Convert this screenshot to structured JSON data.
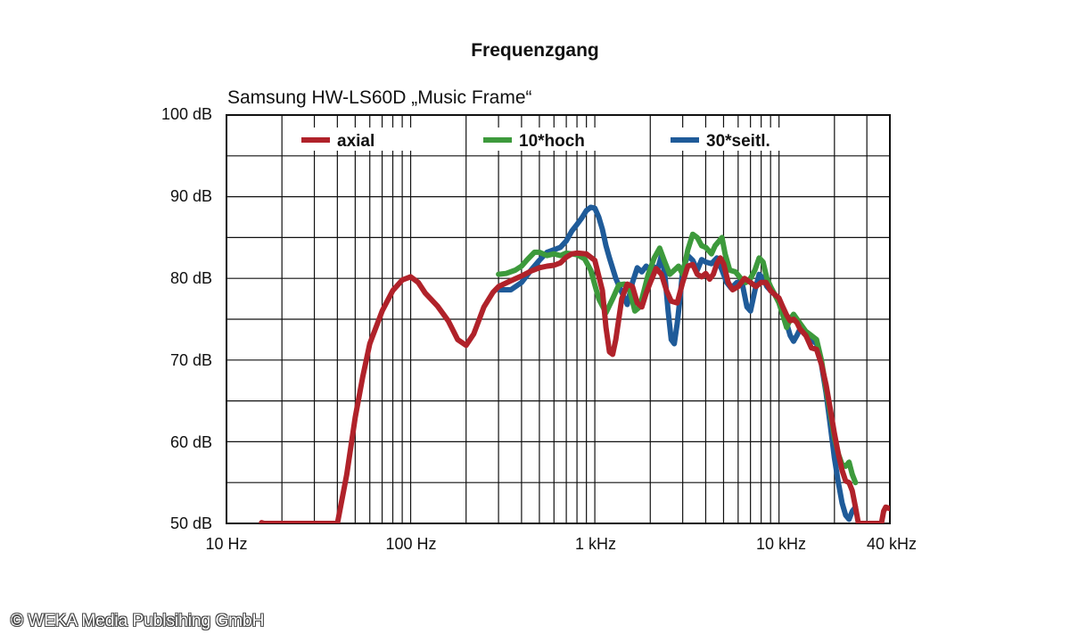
{
  "chart_data": {
    "type": "line",
    "title": "Frequenzgang",
    "subtitle": "Samsung HW-LS60D „Music Frame“",
    "x_scale": "log",
    "xlim": [
      10,
      40000
    ],
    "ylim": [
      50,
      100
    ],
    "y_ticks": [
      {
        "value": 100,
        "label": "100 dB"
      },
      {
        "value": 90,
        "label": "90 dB"
      },
      {
        "value": 80,
        "label": "80 dB"
      },
      {
        "value": 70,
        "label": "70 dB"
      },
      {
        "value": 60,
        "label": "60 dB"
      },
      {
        "value": 50,
        "label": "50 dB"
      }
    ],
    "x_ticks": [
      {
        "value": 10,
        "label": "10 Hz"
      },
      {
        "value": 100,
        "label": "100 Hz"
      },
      {
        "value": 1000,
        "label": "1 kHz"
      },
      {
        "value": 10000,
        "label": "10 kHz"
      },
      {
        "value": 40000,
        "label": "40 kHz"
      }
    ],
    "grid": true,
    "legend": "top",
    "series": [
      {
        "name": "axial",
        "color": "#b0222a",
        "points": [
          [
            15.5,
            50.1
          ],
          [
            16,
            50.0
          ],
          [
            40,
            50.0
          ],
          [
            45,
            56
          ],
          [
            50,
            63
          ],
          [
            55,
            68
          ],
          [
            60,
            72
          ],
          [
            70,
            76
          ],
          [
            80,
            78.5
          ],
          [
            90,
            79.8
          ],
          [
            100,
            80.2
          ],
          [
            110,
            79.5
          ],
          [
            120,
            78.2
          ],
          [
            140,
            76.6
          ],
          [
            160,
            74.8
          ],
          [
            180,
            72.5
          ],
          [
            200,
            71.8
          ],
          [
            220,
            73.2
          ],
          [
            250,
            76.5
          ],
          [
            280,
            78.3
          ],
          [
            300,
            79.0
          ],
          [
            350,
            79.7
          ],
          [
            400,
            80.3
          ],
          [
            450,
            80.9
          ],
          [
            500,
            81.3
          ],
          [
            550,
            81.5
          ],
          [
            600,
            81.6
          ],
          [
            650,
            81.9
          ],
          [
            700,
            82.6
          ],
          [
            750,
            83.0
          ],
          [
            800,
            83.1
          ],
          [
            900,
            83.0
          ],
          [
            1000,
            82.2
          ],
          [
            1100,
            78.5
          ],
          [
            1150,
            74
          ],
          [
            1200,
            71.0
          ],
          [
            1250,
            70.7
          ],
          [
            1300,
            72.5
          ],
          [
            1400,
            77.5
          ],
          [
            1500,
            79.3
          ],
          [
            1600,
            79.0
          ],
          [
            1700,
            77.0
          ],
          [
            1800,
            76.5
          ],
          [
            1900,
            78.2
          ],
          [
            2000,
            79.5
          ],
          [
            2150,
            81.2
          ],
          [
            2300,
            80.5
          ],
          [
            2450,
            78.5
          ],
          [
            2600,
            77.2
          ],
          [
            2800,
            77.0
          ],
          [
            3000,
            79.5
          ],
          [
            3200,
            81.5
          ],
          [
            3400,
            81.7
          ],
          [
            3600,
            80.5
          ],
          [
            3800,
            80.2
          ],
          [
            4000,
            80.6
          ],
          [
            4200,
            79.9
          ],
          [
            4400,
            80.5
          ],
          [
            4600,
            81.8
          ],
          [
            4800,
            82.5
          ],
          [
            5000,
            81.8
          ],
          [
            5300,
            79.5
          ],
          [
            5600,
            78.6
          ],
          [
            6000,
            79.0
          ],
          [
            6500,
            80.0
          ],
          [
            7000,
            79.5
          ],
          [
            7500,
            79.0
          ],
          [
            8000,
            79.5
          ],
          [
            8500,
            79.5
          ],
          [
            9000,
            78.5
          ],
          [
            9500,
            78.0
          ],
          [
            10000,
            77.6
          ],
          [
            10500,
            76.5
          ],
          [
            11000,
            75.5
          ],
          [
            11500,
            74.8
          ],
          [
            12000,
            75.0
          ],
          [
            12500,
            74.6
          ],
          [
            13000,
            73.8
          ],
          [
            14000,
            73.0
          ],
          [
            15000,
            71.5
          ],
          [
            16000,
            71.3
          ],
          [
            17000,
            69.5
          ],
          [
            18000,
            67
          ],
          [
            19000,
            64
          ],
          [
            20000,
            61
          ],
          [
            21000,
            58.5
          ],
          [
            22000,
            56.5
          ],
          [
            23000,
            55.2
          ],
          [
            24000,
            55.0
          ],
          [
            25000,
            54.0
          ],
          [
            26000,
            52.0
          ],
          [
            27000,
            50.0
          ],
          [
            36000,
            50.0
          ],
          [
            37000,
            51.5
          ],
          [
            38000,
            52.0
          ],
          [
            40000,
            51.8
          ]
        ]
      },
      {
        "name": "10*hoch",
        "color": "#3d9a3c",
        "points": [
          [
            300,
            80.5
          ],
          [
            330,
            80.6
          ],
          [
            370,
            81.0
          ],
          [
            400,
            81.5
          ],
          [
            430,
            82.3
          ],
          [
            470,
            83.2
          ],
          [
            500,
            83.2
          ],
          [
            550,
            82.8
          ],
          [
            600,
            83.0
          ],
          [
            650,
            82.8
          ],
          [
            700,
            83.1
          ],
          [
            750,
            83.0
          ],
          [
            800,
            82.9
          ],
          [
            880,
            82.4
          ],
          [
            950,
            81.0
          ],
          [
            1050,
            77.5
          ],
          [
            1150,
            75.8
          ],
          [
            1250,
            77.5
          ],
          [
            1350,
            79.2
          ],
          [
            1450,
            79.3
          ],
          [
            1550,
            78.5
          ],
          [
            1650,
            76.0
          ],
          [
            1750,
            76.5
          ],
          [
            1850,
            78.5
          ],
          [
            1950,
            80.5
          ],
          [
            2100,
            82.5
          ],
          [
            2250,
            83.7
          ],
          [
            2400,
            82.0
          ],
          [
            2550,
            80.5
          ],
          [
            2700,
            81.0
          ],
          [
            2850,
            81.5
          ],
          [
            3000,
            80.5
          ],
          [
            3200,
            83.5
          ],
          [
            3400,
            85.4
          ],
          [
            3600,
            85.0
          ],
          [
            3800,
            84.0
          ],
          [
            4000,
            83.8
          ],
          [
            4300,
            83.0
          ],
          [
            4500,
            84.0
          ],
          [
            4700,
            84.5
          ],
          [
            4900,
            85.0
          ],
          [
            5100,
            83.0
          ],
          [
            5400,
            81.0
          ],
          [
            5800,
            80.8
          ],
          [
            6200,
            80.0
          ],
          [
            6600,
            79.5
          ],
          [
            7000,
            80.0
          ],
          [
            7400,
            81.0
          ],
          [
            7800,
            82.5
          ],
          [
            8200,
            82.0
          ],
          [
            8600,
            80.0
          ],
          [
            9000,
            79.0
          ],
          [
            9500,
            78.0
          ],
          [
            10000,
            77.0
          ],
          [
            10500,
            75.5
          ],
          [
            11000,
            74.0
          ],
          [
            11500,
            75.0
          ],
          [
            12000,
            75.6
          ],
          [
            13000,
            74.5
          ],
          [
            14000,
            73.5
          ],
          [
            15000,
            73.0
          ],
          [
            16000,
            72.5
          ],
          [
            17000,
            70.0
          ],
          [
            18000,
            66.5
          ],
          [
            19000,
            63.5
          ],
          [
            20000,
            60.5
          ],
          [
            21000,
            58.5
          ],
          [
            22000,
            57.2
          ],
          [
            23000,
            57.0
          ],
          [
            24000,
            57.5
          ],
          [
            25000,
            56.0
          ],
          [
            26000,
            55.0
          ]
        ]
      },
      {
        "name": "30*seitl.",
        "color": "#1f5b99",
        "points": [
          [
            300,
            78.6
          ],
          [
            350,
            78.6
          ],
          [
            400,
            79.5
          ],
          [
            450,
            81.0
          ],
          [
            500,
            82.2
          ],
          [
            550,
            83.2
          ],
          [
            600,
            83.5
          ],
          [
            650,
            83.8
          ],
          [
            700,
            84.6
          ],
          [
            750,
            85.8
          ],
          [
            800,
            86.6
          ],
          [
            850,
            87.4
          ],
          [
            900,
            88.3
          ],
          [
            950,
            88.7
          ],
          [
            1000,
            88.6
          ],
          [
            1050,
            87.5
          ],
          [
            1100,
            86.0
          ],
          [
            1150,
            84.0
          ],
          [
            1200,
            82.5
          ],
          [
            1300,
            80.0
          ],
          [
            1400,
            78.3
          ],
          [
            1500,
            76.8
          ],
          [
            1600,
            79.5
          ],
          [
            1700,
            81.3
          ],
          [
            1800,
            80.8
          ],
          [
            1900,
            81.5
          ],
          [
            2000,
            81.0
          ],
          [
            2100,
            81.4
          ],
          [
            2200,
            81.2
          ],
          [
            2300,
            82.8
          ],
          [
            2400,
            80.5
          ],
          [
            2500,
            76.0
          ],
          [
            2600,
            72.5
          ],
          [
            2700,
            72.0
          ],
          [
            2800,
            74.5
          ],
          [
            2900,
            77.5
          ],
          [
            3000,
            81.0
          ],
          [
            3200,
            82.8
          ],
          [
            3400,
            82.2
          ],
          [
            3600,
            81.0
          ],
          [
            3800,
            82.3
          ],
          [
            4000,
            82.0
          ],
          [
            4300,
            81.8
          ],
          [
            4600,
            82.5
          ],
          [
            4900,
            81.0
          ],
          [
            5200,
            79.5
          ],
          [
            5500,
            78.8
          ],
          [
            5900,
            79.5
          ],
          [
            6300,
            79.5
          ],
          [
            6700,
            76.5
          ],
          [
            7000,
            76.0
          ],
          [
            7400,
            78.5
          ],
          [
            7800,
            80.5
          ],
          [
            8200,
            80.0
          ],
          [
            8600,
            79.0
          ],
          [
            9000,
            78.5
          ],
          [
            9500,
            78.0
          ],
          [
            10000,
            77.5
          ],
          [
            10500,
            76.0
          ],
          [
            11000,
            74.5
          ],
          [
            11500,
            73.0
          ],
          [
            12000,
            72.3
          ],
          [
            12500,
            73.0
          ],
          [
            13000,
            73.8
          ],
          [
            14000,
            73.0
          ],
          [
            15000,
            72.5
          ],
          [
            16000,
            72.0
          ],
          [
            17000,
            69.5
          ],
          [
            18000,
            66.0
          ],
          [
            19000,
            62.0
          ],
          [
            20000,
            58.0
          ],
          [
            21000,
            55.0
          ],
          [
            22000,
            52.5
          ],
          [
            23000,
            51.0
          ],
          [
            24000,
            50.5
          ],
          [
            25000,
            51.5
          ],
          [
            26000,
            52.0
          ]
        ]
      }
    ]
  },
  "credit": "© WEKA Media Publsihing GmbH"
}
